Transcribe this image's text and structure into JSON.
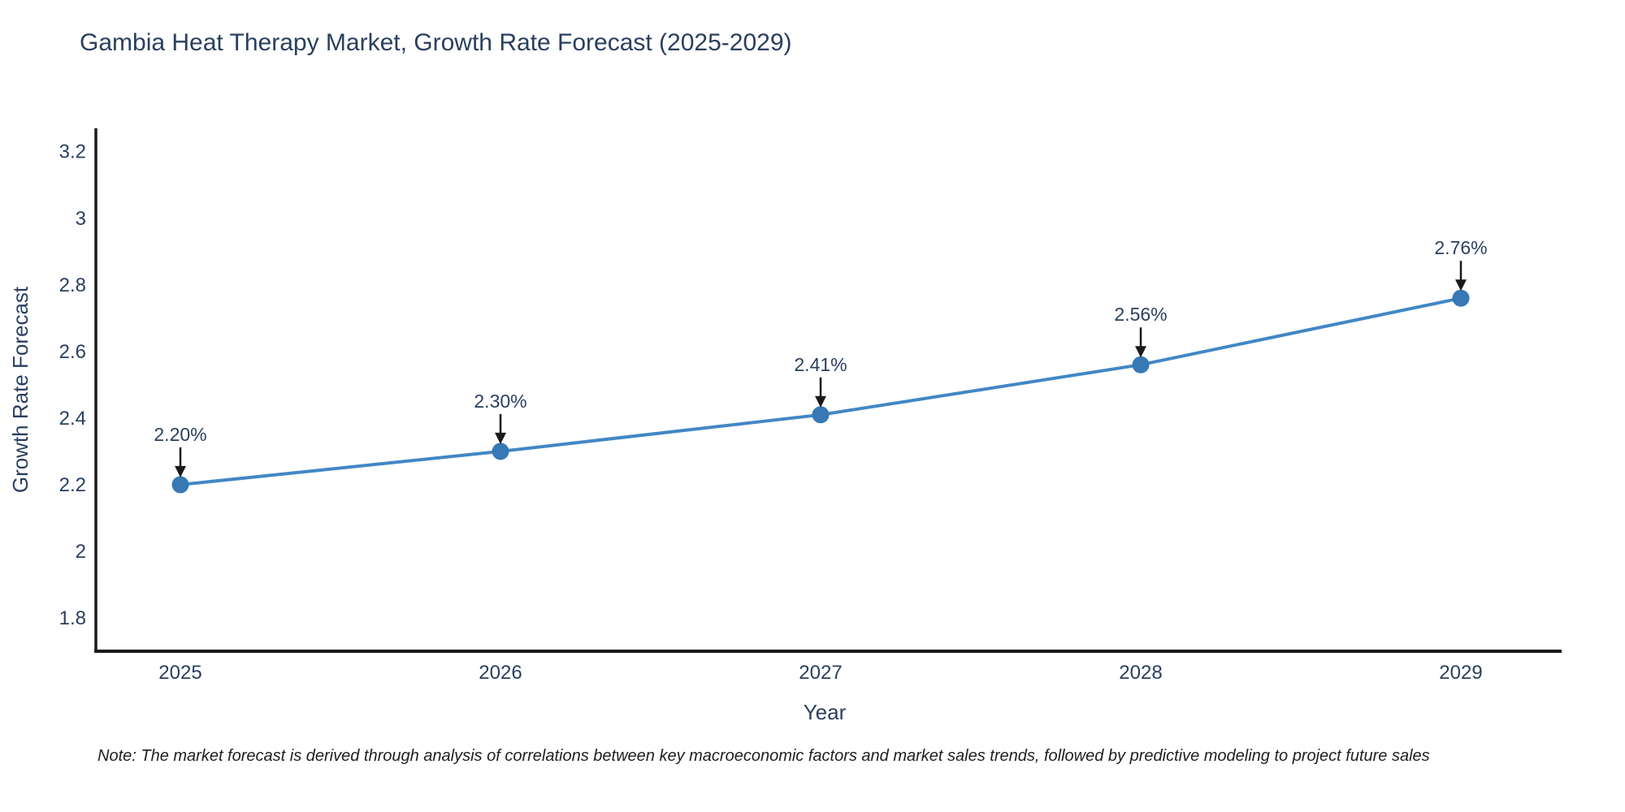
{
  "title": {
    "text": "Gambia Heat Therapy Market, Growth Rate Forecast (2025-2029)",
    "color": "#2a3f5f"
  },
  "note": {
    "text": "Note: The market forecast is derived through analysis of correlations between key macroeconomic factors and market sales trends, followed by predictive modeling to project future sales"
  },
  "chart_data": {
    "type": "line",
    "title": "Gambia Heat Therapy Market, Growth Rate Forecast (2025-2029)",
    "xlabel": "Year",
    "ylabel": "Growth Rate Forecast",
    "categories": [
      "2025",
      "2026",
      "2027",
      "2028",
      "2029"
    ],
    "values": [
      2.2,
      2.3,
      2.41,
      2.56,
      2.76
    ],
    "point_labels": [
      "2.20%",
      "2.30%",
      "2.41%",
      "2.56%",
      "2.76%"
    ],
    "y_ticks": [
      1.8,
      2.0,
      2.2,
      2.4,
      2.6,
      2.8,
      3.0,
      3.2
    ],
    "y_tick_labels": [
      "1.8",
      "2",
      "2.2",
      "2.4",
      "2.6",
      "2.8",
      "3",
      "3.2"
    ],
    "ylim": [
      1.7,
      3.27
    ],
    "grid": false,
    "legend": false,
    "line_color": "#4287c5",
    "marker_color": "#3778b5",
    "axis_color": "#1a1a1a",
    "annotation_arrow_color": "#1a1a1a"
  }
}
